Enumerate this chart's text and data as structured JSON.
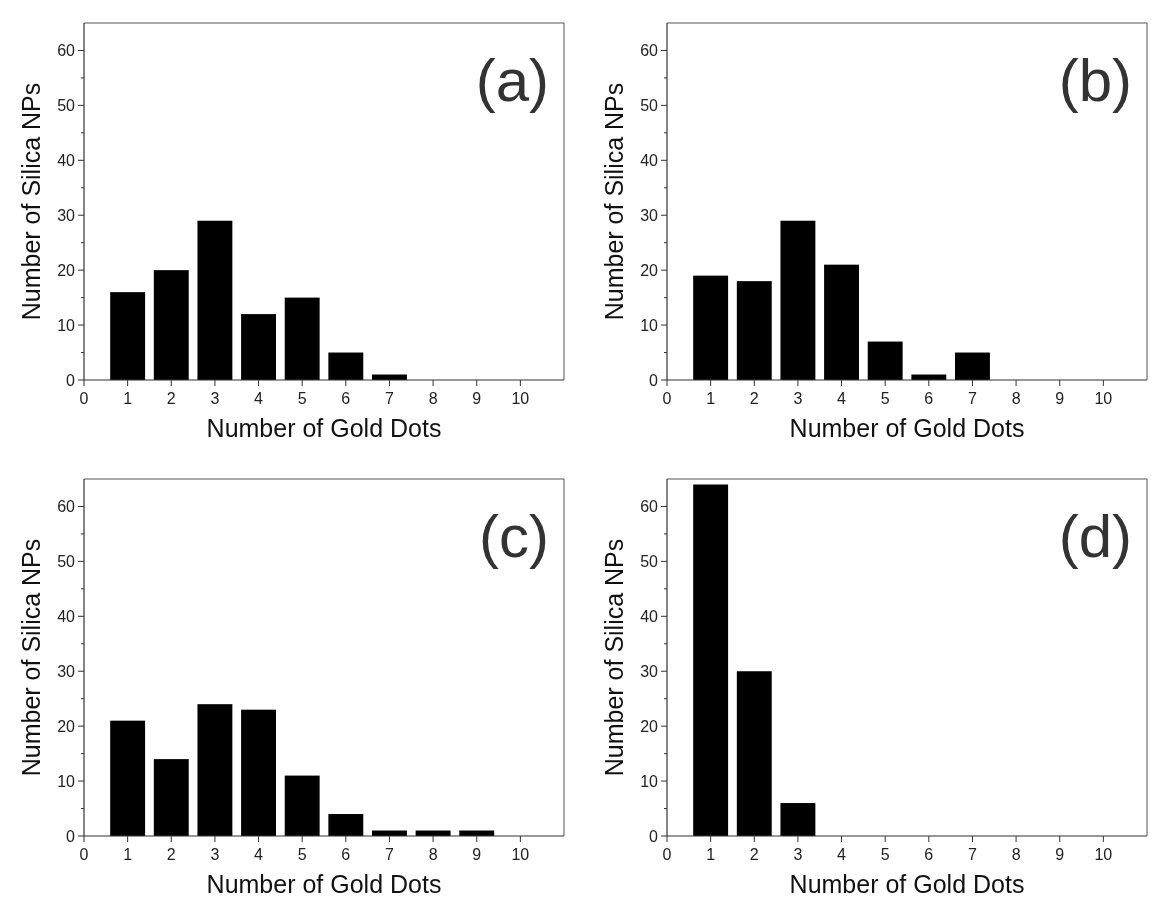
{
  "chart_data": [
    {
      "type": "bar",
      "x": [
        1,
        2,
        3,
        4,
        5,
        6,
        7
      ],
      "values": [
        16,
        20,
        29,
        12,
        15,
        5,
        1
      ],
      "color": "#000000",
      "xlim": [
        0,
        11
      ],
      "xticks": [
        0,
        1,
        2,
        3,
        4,
        5,
        6,
        7,
        8,
        9,
        10
      ],
      "ylim": [
        0,
        65
      ],
      "yticks": [
        0,
        {
          "value": 5,
          "label": null
        },
        10,
        {
          "value": 15,
          "label": null
        },
        20,
        {
          "value": 25,
          "label": null
        },
        30,
        {
          "value": 35,
          "label": null
        },
        40,
        {
          "value": 45,
          "label": null
        },
        50,
        {
          "value": 55,
          "label": null
        },
        60
      ],
      "xlabel": "Number of Gold Dots",
      "ylabel": "Number of Silica NPs",
      "annotations": [
        "(a)"
      ]
    },
    {
      "type": "bar",
      "x": [
        1,
        2,
        3,
        4,
        5,
        6,
        7
      ],
      "values": [
        19,
        18,
        29,
        21,
        7,
        1,
        5
      ],
      "color": "#000000",
      "xlim": [
        0,
        11
      ],
      "xticks": [
        0,
        1,
        2,
        3,
        4,
        5,
        6,
        7,
        8,
        9,
        10
      ],
      "ylim": [
        0,
        65
      ],
      "yticks": [
        0,
        {
          "value": 5,
          "label": null
        },
        10,
        {
          "value": 15,
          "label": null
        },
        20,
        {
          "value": 25,
          "label": null
        },
        30,
        {
          "value": 35,
          "label": null
        },
        40,
        {
          "value": 45,
          "label": null
        },
        50,
        {
          "value": 55,
          "label": null
        },
        60
      ],
      "xlabel": "Number of Gold Dots",
      "ylabel": "Number of Silica NPs",
      "annotations": [
        "(b)"
      ]
    },
    {
      "type": "bar",
      "x": [
        1,
        2,
        3,
        4,
        5,
        6,
        7,
        8,
        9
      ],
      "values": [
        21,
        14,
        24,
        23,
        11,
        4,
        1,
        1,
        1
      ],
      "color": "#000000",
      "xlim": [
        0,
        11
      ],
      "xticks": [
        0,
        1,
        2,
        3,
        4,
        5,
        6,
        7,
        8,
        9,
        10
      ],
      "ylim": [
        0,
        65
      ],
      "yticks": [
        0,
        {
          "value": 5,
          "label": null
        },
        10,
        {
          "value": 15,
          "label": null
        },
        20,
        {
          "value": 25,
          "label": null
        },
        30,
        {
          "value": 35,
          "label": null
        },
        40,
        {
          "value": 45,
          "label": null
        },
        50,
        {
          "value": 55,
          "label": null
        },
        60
      ],
      "xlabel": "Number of Gold Dots",
      "ylabel": "Number of Silica NPs",
      "annotations": [
        "(c)"
      ]
    },
    {
      "type": "bar",
      "x": [
        1,
        2,
        3
      ],
      "values": [
        64,
        30,
        6
      ],
      "color": "#000000",
      "xlim": [
        0,
        11
      ],
      "xticks": [
        0,
        1,
        2,
        3,
        4,
        5,
        6,
        7,
        8,
        9,
        10
      ],
      "ylim": [
        0,
        65
      ],
      "yticks": [
        0,
        {
          "value": 5,
          "label": null
        },
        10,
        {
          "value": 15,
          "label": null
        },
        20,
        {
          "value": 25,
          "label": null
        },
        30,
        {
          "value": 35,
          "label": null
        },
        40,
        {
          "value": 45,
          "label": null
        },
        50,
        {
          "value": 55,
          "label": null
        },
        60
      ],
      "xlabel": "Number of Gold Dots",
      "ylabel": "Number of Silica NPs",
      "annotations": [
        "(d)"
      ]
    }
  ]
}
